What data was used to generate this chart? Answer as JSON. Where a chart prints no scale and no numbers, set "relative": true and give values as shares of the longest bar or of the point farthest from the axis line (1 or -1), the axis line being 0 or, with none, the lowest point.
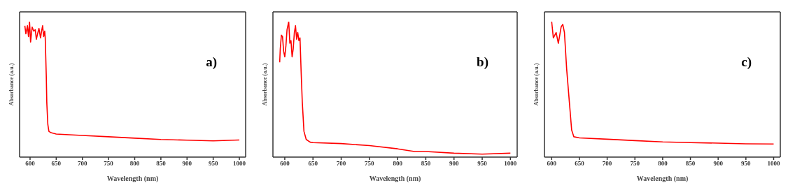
{
  "chart_data": [
    {
      "type": "line",
      "relative": true,
      "xlabel": "Wavelength (nm)",
      "ylabel": "Absorbance (a.u.)",
      "annotations": [
        "a)"
      ],
      "xlim": [
        580,
        1012
      ],
      "xticks": [
        600,
        650,
        700,
        750,
        800,
        850,
        900,
        950,
        1000
      ],
      "grid": false,
      "legend": false,
      "marker": "none",
      "line_style": "solid",
      "series": [
        {
          "color": "#ff0000",
          "x": [
            590,
            592,
            595,
            597,
            599,
            601,
            604,
            607,
            610,
            612,
            615,
            617,
            620,
            622,
            624,
            626,
            628,
            629,
            631,
            632,
            634,
            636,
            640,
            650,
            700,
            750,
            800,
            850,
            900,
            950,
            1000
          ],
          "values": [
            0.97,
            0.91,
            0.97,
            0.89,
            1,
            0.85,
            0.96,
            0.93,
            0.94,
            0.87,
            0.92,
            0.95,
            0.88,
            0.93,
            0.97,
            0.89,
            0.93,
            0.88,
            0.6,
            0.4,
            0.24,
            0.19,
            0.18,
            0.17,
            0.16,
            0.15,
            0.14,
            0.13,
            0.125,
            0.12,
            0.126
          ]
        }
      ]
    },
    {
      "type": "line",
      "relative": true,
      "xlabel": "Wavelength (nm)",
      "ylabel": "Absorbance (a.u.)",
      "annotations": [
        "b)"
      ],
      "xlim": [
        579,
        1012
      ],
      "xticks": [
        600,
        650,
        700,
        750,
        800,
        850,
        900,
        950,
        1000
      ],
      "grid": false,
      "legend": false,
      "marker": "none",
      "line_style": "solid",
      "series": [
        {
          "color": "#ff0000",
          "x": [
            591,
            592,
            594,
            596,
            598,
            600,
            602,
            604,
            607,
            609,
            611,
            613,
            615,
            617,
            619,
            621,
            623,
            625,
            627,
            629,
            631,
            634,
            638,
            645,
            650,
            700,
            750,
            800,
            830,
            850,
            900,
            950,
            1000
          ],
          "values": [
            0.7,
            0.8,
            0.9,
            0.89,
            0.78,
            0.74,
            0.82,
            0.94,
            1,
            0.84,
            0.86,
            0.74,
            0.8,
            0.92,
            0.97,
            0.87,
            0.92,
            0.86,
            0.88,
            0.63,
            0.41,
            0.19,
            0.13,
            0.11,
            0.107,
            0.1,
            0.085,
            0.061,
            0.041,
            0.041,
            0.029,
            0.022,
            0.029
          ]
        }
      ]
    },
    {
      "type": "line",
      "relative": true,
      "xlabel": "Wavelength (nm)",
      "ylabel": "Absorbance (a.u.)",
      "annotations": [
        "c)"
      ],
      "xlim": [
        587,
        1012
      ],
      "xticks": [
        600,
        650,
        700,
        750,
        800,
        850,
        900,
        950,
        1000
      ],
      "grid": false,
      "legend": false,
      "marker": "none",
      "line_style": "solid",
      "series": [
        {
          "color": "#ff0000",
          "x": [
            600,
            603,
            608,
            612,
            617,
            620,
            623,
            627,
            632,
            636,
            640,
            650,
            700,
            750,
            800,
            850,
            900,
            950,
            1000
          ],
          "values": [
            1,
            0.88,
            0.92,
            0.84,
            0.96,
            0.98,
            0.92,
            0.65,
            0.4,
            0.2,
            0.15,
            0.142,
            0.132,
            0.122,
            0.112,
            0.107,
            0.103,
            0.098,
            0.097
          ]
        }
      ]
    }
  ]
}
